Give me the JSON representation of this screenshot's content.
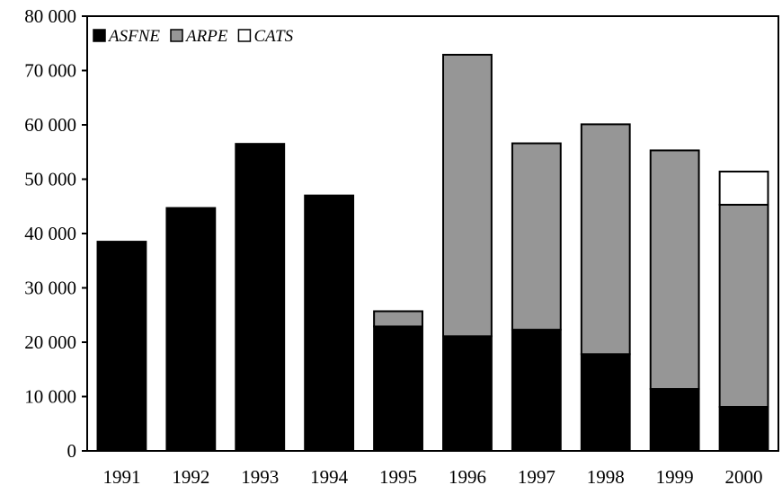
{
  "chart_data": {
    "type": "bar",
    "stacked": true,
    "title": "",
    "xlabel": "",
    "ylabel": "",
    "categories": [
      "1991",
      "1992",
      "1993",
      "1994",
      "1995",
      "1996",
      "1997",
      "1998",
      "1999",
      "2000"
    ],
    "series": [
      {
        "name": "ASFNE",
        "color": "#000000",
        "values": [
          38500,
          44700,
          56500,
          47000,
          22900,
          21100,
          22300,
          17800,
          11400,
          8100
        ]
      },
      {
        "name": "ARPE",
        "color": "#969696",
        "values": [
          0,
          0,
          0,
          0,
          2800,
          51800,
          34300,
          42300,
          43900,
          37200
        ]
      },
      {
        "name": "CATS",
        "color": "#ffffff",
        "values": [
          0,
          0,
          0,
          0,
          0,
          0,
          0,
          0,
          0,
          6100
        ]
      }
    ],
    "ylim": [
      0,
      80000
    ],
    "yticks": [
      0,
      10000,
      20000,
      30000,
      40000,
      50000,
      60000,
      70000,
      80000
    ],
    "ytick_labels": [
      "0",
      "10 000",
      "20 000",
      "30 000",
      "40 000",
      "50 000",
      "60 000",
      "70 000",
      "80 000"
    ],
    "grid": false,
    "legend_position": "top-left"
  }
}
